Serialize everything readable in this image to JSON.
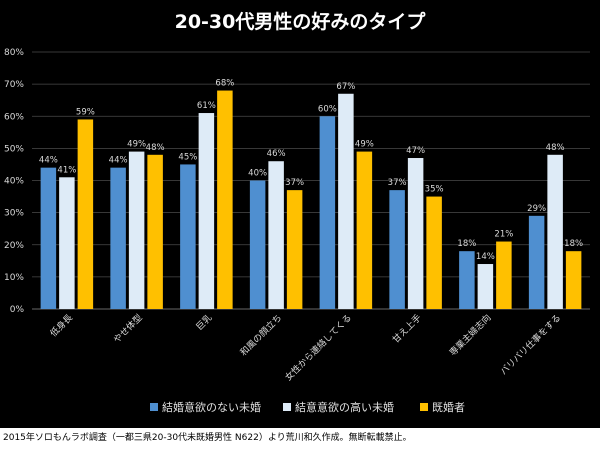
{
  "chart_data": {
    "type": "bar",
    "title": "20-30代男性の好みのタイプ",
    "categories": [
      "低身長",
      "やせ体型",
      "巨乳",
      "和風の顔立ち",
      "女性から連絡してくる",
      "甘え上手",
      "専業主婦志向",
      "バリバリ仕事をする"
    ],
    "series": [
      {
        "name": "結婚意欲のない未婚",
        "color": "#4f8fd0",
        "values": [
          44,
          44,
          45,
          40,
          60,
          37,
          18,
          29
        ]
      },
      {
        "name": "結意意欲の高い未婚",
        "color": "#deebf7",
        "values": [
          41,
          49,
          61,
          46,
          67,
          47,
          14,
          48
        ]
      },
      {
        "name": "既婚者",
        "color": "#ffc000",
        "values": [
          59,
          48,
          68,
          37,
          49,
          35,
          21,
          18
        ]
      }
    ],
    "yticks": [
      "0%",
      "10%",
      "20%",
      "30%",
      "40%",
      "50%",
      "60%",
      "70%",
      "80%"
    ],
    "ylim": [
      0,
      80
    ],
    "value_suffix": "%",
    "grid": true,
    "legend_position": "bottom"
  },
  "footnote": "2015年ソロもんラボ調査（一都三県20-30代未既婚男性 N622）より荒川和久作成。無断転載禁止。"
}
